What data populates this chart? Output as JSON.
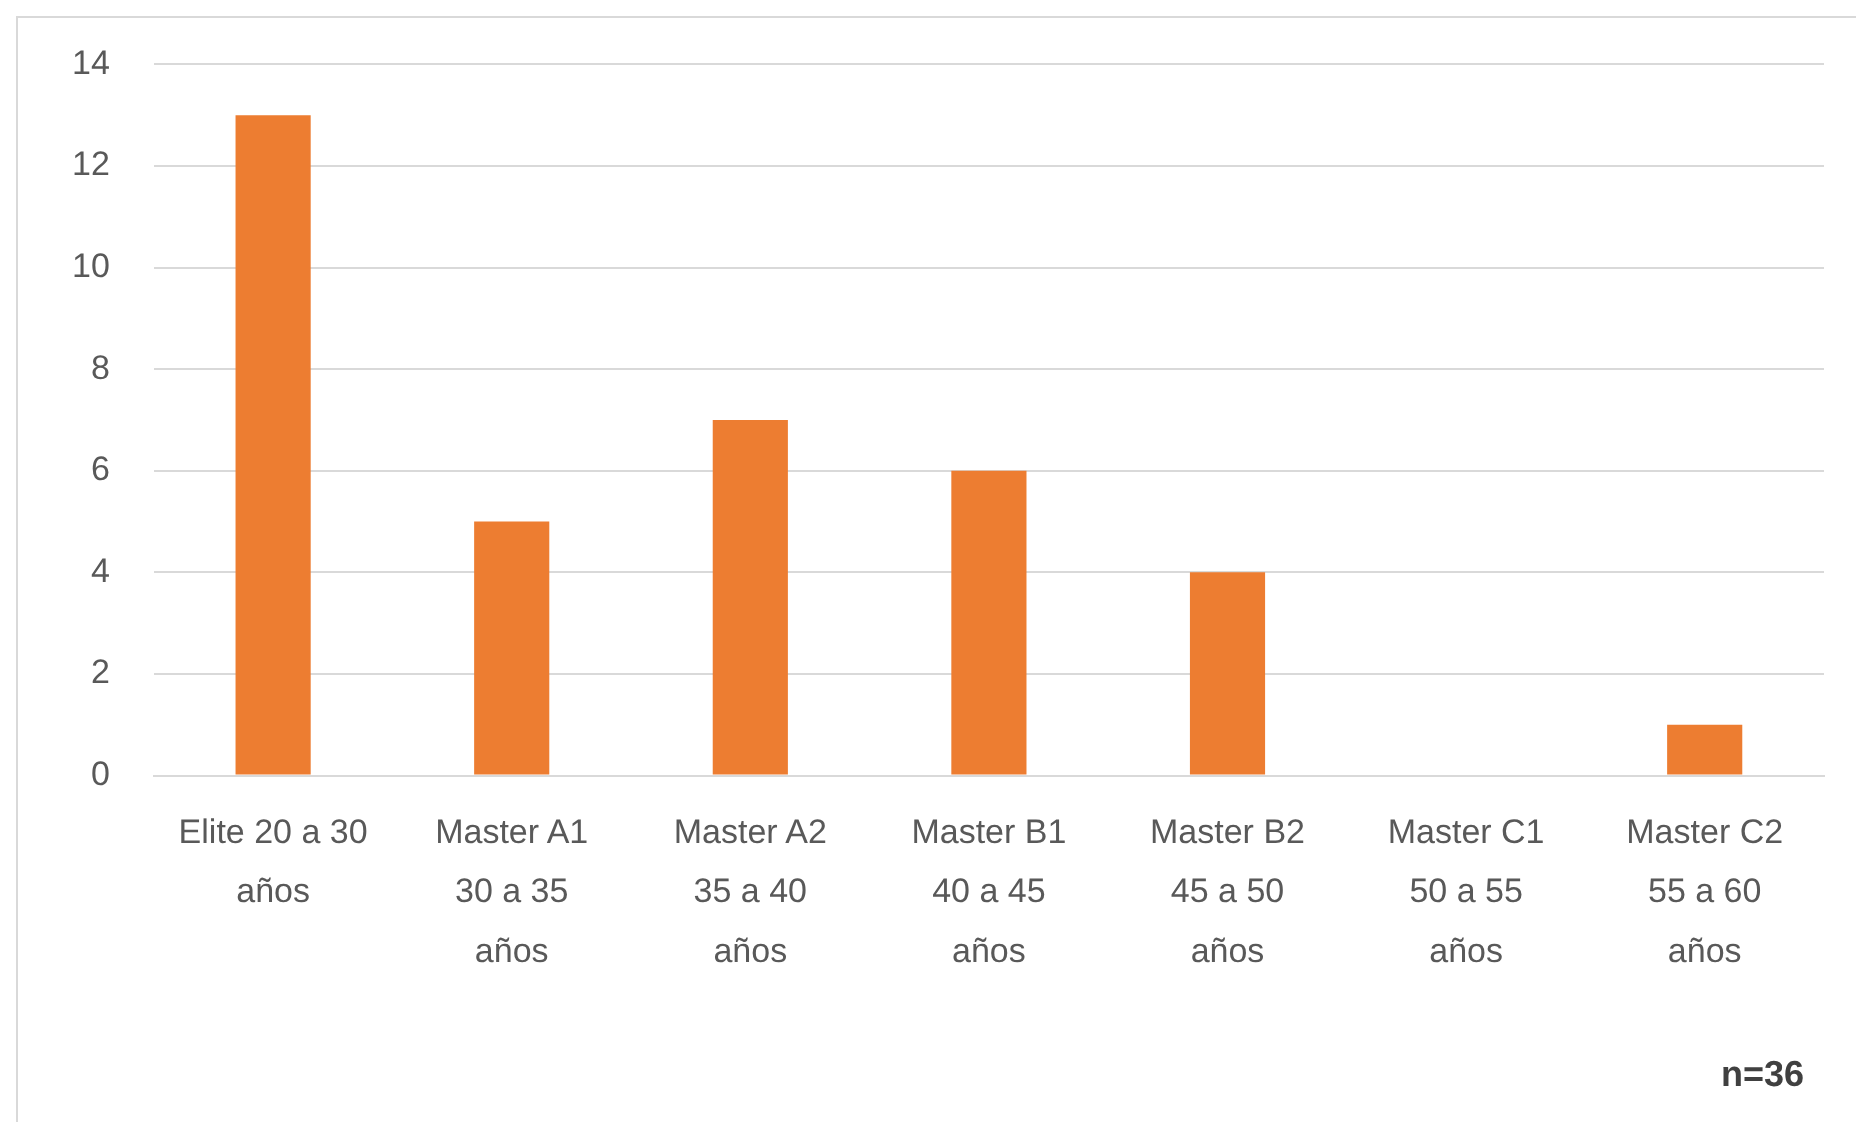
{
  "chart_data": {
    "type": "bar",
    "categories": [
      "Elite 20 a 30 años",
      "Master A1 30 a 35 años",
      "Master A2 35 a 40 años",
      "Master B1 40 a 45 años",
      "Master B2 45 a 50 años",
      "Master C1 50 a 55 años",
      "Master C2 55 a 60 años"
    ],
    "values": [
      13,
      5,
      7,
      6,
      4,
      0,
      1
    ],
    "color": "#ed7d31",
    "ylim": [
      0,
      14
    ],
    "yticks": [
      0,
      2,
      4,
      6,
      8,
      10,
      12,
      14
    ],
    "grid": "y",
    "annotations": [
      "n=36"
    ]
  }
}
